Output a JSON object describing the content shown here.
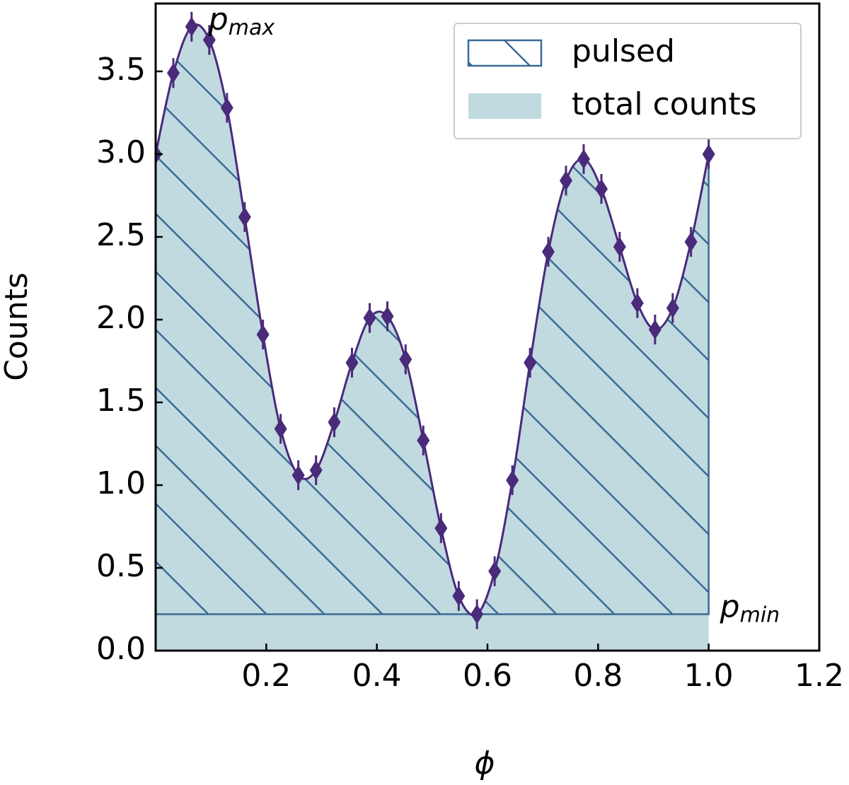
{
  "chart_data": {
    "type": "line",
    "xlabel": "ϕ",
    "ylabel": "Counts",
    "x": [
      0,
      0.032,
      0.065,
      0.097,
      0.129,
      0.161,
      0.194,
      0.226,
      0.258,
      0.29,
      0.323,
      0.355,
      0.387,
      0.419,
      0.452,
      0.484,
      0.516,
      0.548,
      0.581,
      0.613,
      0.645,
      0.677,
      0.71,
      0.742,
      0.774,
      0.806,
      0.839,
      0.871,
      0.903,
      0.935,
      0.968,
      1
    ],
    "values": [
      3.0,
      3.49,
      3.77,
      3.69,
      3.28,
      2.62,
      1.91,
      1.34,
      1.06,
      1.09,
      1.38,
      1.74,
      2.01,
      2.02,
      1.76,
      1.27,
      0.74,
      0.33,
      0.22,
      0.48,
      1.03,
      1.74,
      2.41,
      2.84,
      2.97,
      2.79,
      2.44,
      2.1,
      1.94,
      2.07,
      2.47,
      3.0
    ],
    "errors": [
      0.09,
      0.09,
      0.09,
      0.09,
      0.09,
      0.09,
      0.09,
      0.09,
      0.09,
      0.09,
      0.09,
      0.09,
      0.09,
      0.09,
      0.09,
      0.09,
      0.09,
      0.09,
      0.09,
      0.09,
      0.09,
      0.09,
      0.09,
      0.09,
      0.09,
      0.09,
      0.09,
      0.09,
      0.09,
      0.09,
      0.09,
      0.09
    ],
    "color": "#4a2a7a",
    "areas": [
      {
        "name": "pulsed",
        "color": "#3a6a96",
        "hatch": true
      },
      {
        "name": "total counts",
        "color": "#c0dadf",
        "hatch": false
      }
    ],
    "annotations": [
      {
        "text": "p",
        "sub": "max"
      },
      {
        "text": "p",
        "sub": "min"
      }
    ],
    "xlim": [
      0,
      1.2
    ],
    "xticks": [
      0.2,
      0.4,
      0.6,
      0.8,
      {
        "value": 1,
        "label": "1.0"
      },
      1.2
    ],
    "ylim": [
      0,
      3.91
    ],
    "yticks": [
      {
        "value": 0,
        "label": "0.0"
      },
      0.5,
      {
        "value": 1,
        "label": "1.0"
      },
      1.5,
      {
        "value": 2,
        "label": "2.0"
      },
      2.5,
      {
        "value": 3,
        "label": "3.0"
      },
      3.5
    ],
    "grid": false,
    "legend": "upper right"
  }
}
